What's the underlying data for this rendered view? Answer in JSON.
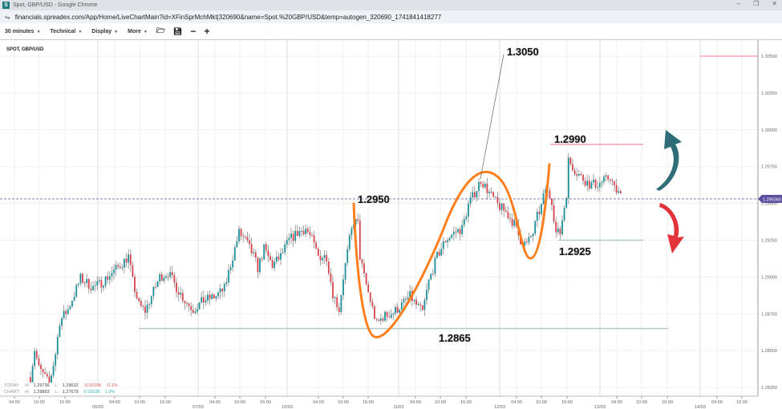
{
  "window": {
    "title": "Spot, GBP/USD - Google Chrome",
    "favicon": "S",
    "url": "financials.spreadex.com/App/Home/LiveChartMain?id=XFinSprMchMkt|320690&name=Spot.%20GBP/USD&temp=autogen_320690_1741841418277"
  },
  "toolbar": {
    "interval": "30 minutes",
    "technical": "Technical",
    "display": "Display",
    "more": "More",
    "icons": [
      "folder-open-icon",
      "save-icon",
      "zoom-out-icon",
      "zoom-in-icon"
    ]
  },
  "chart_title": "SPOT, GBP/USD",
  "info": {
    "today": {
      "label": "TODAY:",
      "h_label": "H:",
      "h": "1.29736",
      "l_label": "L:",
      "l": "1.29632",
      "change": "-0.00108",
      "pct": "-0.1%"
    },
    "chart": {
      "label": "CHART:",
      "h_label": "H:",
      "h": "1.29893",
      "l_label": "L:",
      "l": "1.27679",
      "change": "0.01638",
      "pct": "1.3%"
    }
  },
  "colors": {
    "up": "#1b8e98",
    "down": "#d8424c",
    "wick": "#8a8a8a",
    "annotation": "#ff7f1e",
    "resistance": "#f4a3ab",
    "support": "#b5c9cc",
    "current_price": "#5b4fa0",
    "arrow_up": "#2f6d78",
    "arrow_down": "#e2333b"
  },
  "chart_data": {
    "type": "candlestick",
    "interval": "30 minutes",
    "y_ticks": [
      "1.30500",
      "1.30250",
      "1.30000",
      "1.29750",
      "1.29500",
      "1.29250",
      "1.29000",
      "1.28750",
      "1.28500",
      "1.28250"
    ],
    "ylim": [
      1.2815,
      1.3068
    ],
    "x_time_ticks": [
      "04:00",
      "10:00",
      "16:00",
      "04:00",
      "10:00",
      "16:00",
      "04:00",
      "10:00",
      "16:00",
      "04:00",
      "10:00",
      "16:00",
      "04:00",
      "10:00",
      "16:00",
      "04:00",
      "10:00",
      "16:00",
      "04:00",
      "10:00",
      "16:00",
      "04:00",
      "10:00"
    ],
    "x_date_ticks": [
      "06/03",
      "07/03",
      "10/03",
      "11/03",
      "12/03",
      "13/03",
      "14/03"
    ],
    "approx_close_path": [
      [
        0,
        1.2832
      ],
      [
        2,
        1.2851
      ],
      [
        4,
        1.2838
      ],
      [
        7,
        1.2832
      ],
      [
        9,
        1.2827
      ],
      [
        12,
        1.2848
      ],
      [
        14,
        1.287
      ],
      [
        18,
        1.2878
      ],
      [
        22,
        1.2892
      ],
      [
        24,
        1.2899
      ],
      [
        26,
        1.2897
      ],
      [
        30,
        1.2893
      ],
      [
        33,
        1.2895
      ],
      [
        37,
        1.29
      ],
      [
        43,
        1.2908
      ],
      [
        47,
        1.2914
      ],
      [
        49,
        1.2897
      ],
      [
        52,
        1.2881
      ],
      [
        55,
        1.2877
      ],
      [
        58,
        1.2887
      ],
      [
        62,
        1.29
      ],
      [
        66,
        1.2903
      ],
      [
        70,
        1.2893
      ],
      [
        74,
        1.2884
      ],
      [
        78,
        1.2878
      ],
      [
        83,
        1.2884
      ],
      [
        89,
        1.2887
      ],
      [
        93,
        1.2892
      ],
      [
        97,
        1.2914
      ],
      [
        100,
        1.293
      ],
      [
        103,
        1.2925
      ],
      [
        107,
        1.2914
      ],
      [
        109,
        1.2906
      ],
      [
        112,
        1.2919
      ],
      [
        116,
        1.2908
      ],
      [
        120,
        1.2914
      ],
      [
        124,
        1.2925
      ],
      [
        128,
        1.293
      ],
      [
        132,
        1.2933
      ],
      [
        135,
        1.2925
      ],
      [
        138,
        1.2914
      ],
      [
        142,
        1.2914
      ],
      [
        145,
        1.2889
      ],
      [
        148,
        1.2878
      ],
      [
        150,
        1.29
      ],
      [
        153,
        1.2925
      ],
      [
        155,
        1.2938
      ],
      [
        157,
        1.2936
      ],
      [
        158,
        1.2914
      ],
      [
        160,
        1.29
      ],
      [
        163,
        1.2884
      ],
      [
        166,
        1.2868
      ],
      [
        169,
        1.2873
      ],
      [
        174,
        1.2876
      ],
      [
        178,
        1.2881
      ],
      [
        182,
        1.2887
      ],
      [
        185,
        1.2881
      ],
      [
        188,
        1.2876
      ],
      [
        191,
        1.2897
      ],
      [
        195,
        1.2914
      ],
      [
        199,
        1.2925
      ],
      [
        203,
        1.293
      ],
      [
        207,
        1.2933
      ],
      [
        210,
        1.2949
      ],
      [
        214,
        1.296
      ],
      [
        216,
        1.2966
      ],
      [
        220,
        1.2957
      ],
      [
        224,
        1.2949
      ],
      [
        228,
        1.2944
      ],
      [
        232,
        1.2936
      ],
      [
        235,
        1.2925
      ],
      [
        238,
        1.2922
      ],
      [
        241,
        1.293
      ],
      [
        243,
        1.2941
      ],
      [
        245,
        1.2948
      ],
      [
        247,
        1.296
      ],
      [
        250,
        1.2952
      ],
      [
        252,
        1.293
      ],
      [
        254,
        1.293
      ],
      [
        257,
        1.2957
      ],
      [
        258,
        1.2979
      ],
      [
        262,
        1.2971
      ],
      [
        264,
        1.2968
      ],
      [
        268,
        1.2963
      ],
      [
        272,
        1.2963
      ],
      [
        276,
        1.2966
      ],
      [
        278,
        1.2968
      ],
      [
        280,
        1.296
      ],
      [
        283,
        1.2955
      ]
    ],
    "current_price": "1.295360",
    "annotations": {
      "peak_label": "1.3050",
      "start_label": "1.2950",
      "resistance_label": "1.2990",
      "support_label": "1.2925",
      "low_label": "1.2865"
    },
    "levels": {
      "top": 1.305,
      "resistance": 1.299,
      "support": 1.2925,
      "low": 1.2865
    }
  }
}
